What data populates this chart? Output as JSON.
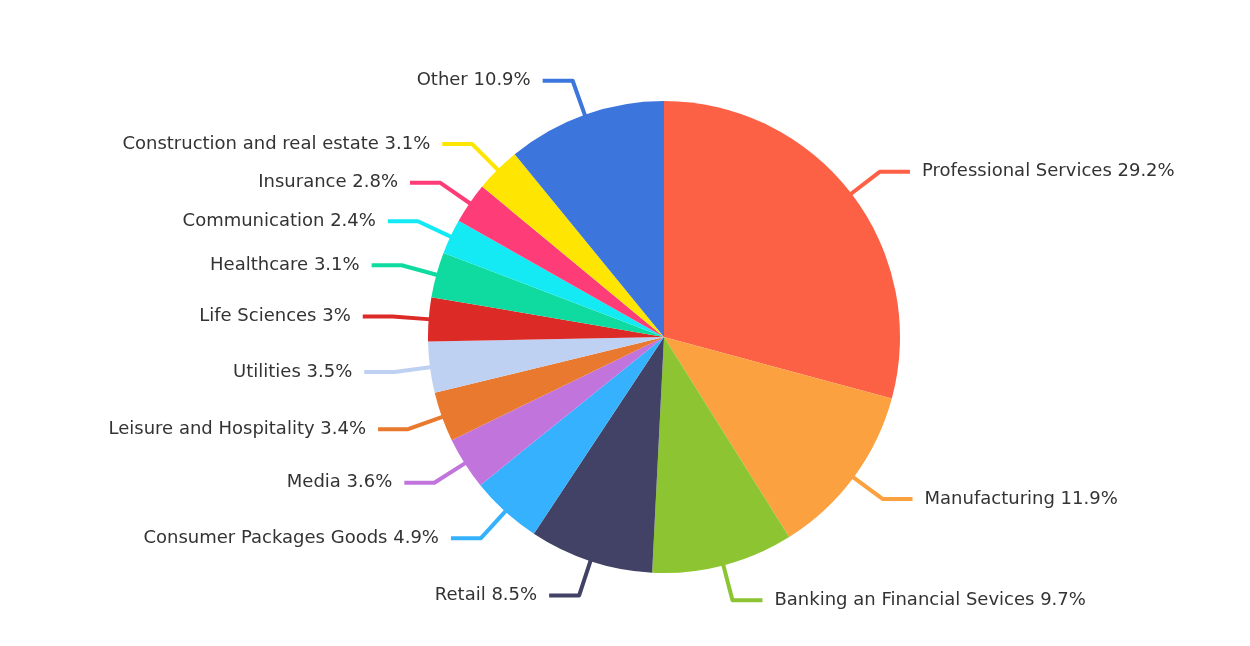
{
  "chart_data": {
    "type": "pie",
    "categories": [
      "Professional Services",
      "Manufacturing",
      "Banking an Financial Sevices",
      "Retail",
      "Consumer Packages Goods",
      "Media",
      "Leisure and Hospitality",
      "Utilities",
      "Life Sciences",
      "Healthcare",
      "Communication",
      "Insurance",
      "Construction and real estate",
      "Other"
    ],
    "values": [
      29.2,
      11.9,
      9.7,
      8.5,
      4.9,
      3.6,
      3.4,
      3.5,
      3,
      3.1,
      2.4,
      2.8,
      3.1,
      10.9
    ],
    "value_labels": [
      "29.2%",
      "11.9%",
      "9.7%",
      "8.5%",
      "4.9%",
      "3.6%",
      "3.4%",
      "3.5%",
      "3%",
      "3.1%",
      "2.4%",
      "2.8%",
      "3.1%",
      "10.9%"
    ],
    "colors": [
      "#fd6145",
      "#fba13f",
      "#8cc531",
      "#414265",
      "#35b1fd",
      "#c274dd",
      "#e8792e",
      "#bfd1f3",
      "#dc2a27",
      "#0fdba0",
      "#14eaf3",
      "#fe3d78",
      "#ffe502",
      "#3c75dc"
    ]
  }
}
